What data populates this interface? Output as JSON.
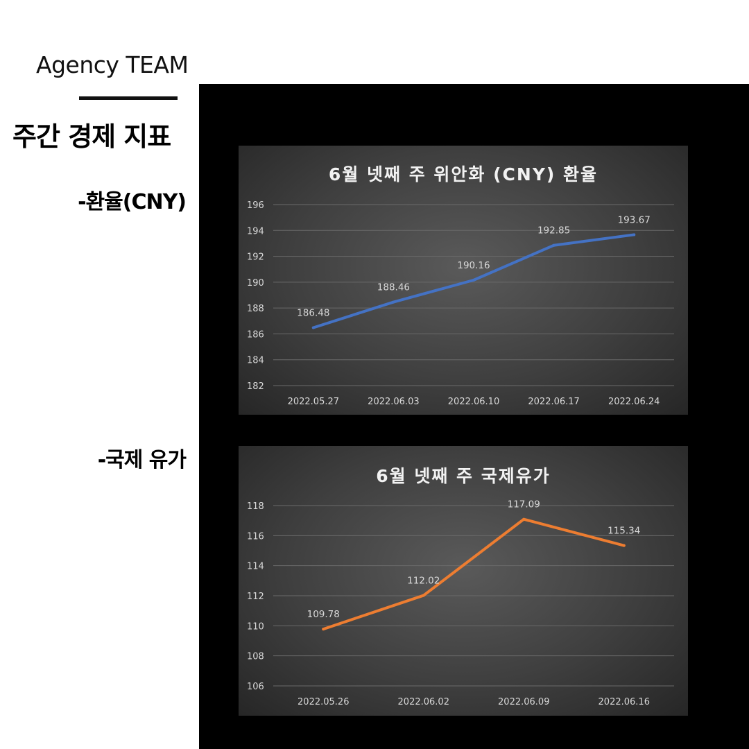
{
  "brand": "Agency TEAM",
  "heading": "주간 경제 지표",
  "sections": {
    "cny_label": "-환율(CNY)",
    "oil_label": "-국제 유가"
  },
  "colors": {
    "cny_line": "#4472c4",
    "oil_line": "#ed7d31",
    "grid": "#6a6a6a",
    "text": "#d9d9d9"
  },
  "chart_data": [
    {
      "type": "line",
      "title": "6월 넷째 주 위안화 (CNY) 환율",
      "categories": [
        "2022.05.27",
        "2022.06.03",
        "2022.06.10",
        "2022.06.17",
        "2022.06.24"
      ],
      "values": [
        186.48,
        188.46,
        190.16,
        192.85,
        193.67
      ],
      "data_labels": [
        "186.48",
        "188.46",
        "190.16",
        "192.85",
        "193.67"
      ],
      "ylim": [
        182,
        196
      ],
      "yticks": [
        "182",
        "184",
        "186",
        "188",
        "190",
        "192",
        "194",
        "196"
      ],
      "grid": true,
      "xlabel": "",
      "ylabel": ""
    },
    {
      "type": "line",
      "title": "6월 넷째 주 국제유가",
      "categories": [
        "2022.05.26",
        "2022.06.02",
        "2022.06.09",
        "2022.06.16"
      ],
      "values": [
        109.78,
        112.02,
        117.09,
        115.34
      ],
      "data_labels": [
        "109.78",
        "112.02",
        "117.09",
        "115.34"
      ],
      "ylim": [
        106,
        118
      ],
      "yticks": [
        "106",
        "108",
        "110",
        "112",
        "114",
        "116",
        "118"
      ],
      "grid": true,
      "xlabel": "",
      "ylabel": ""
    }
  ]
}
